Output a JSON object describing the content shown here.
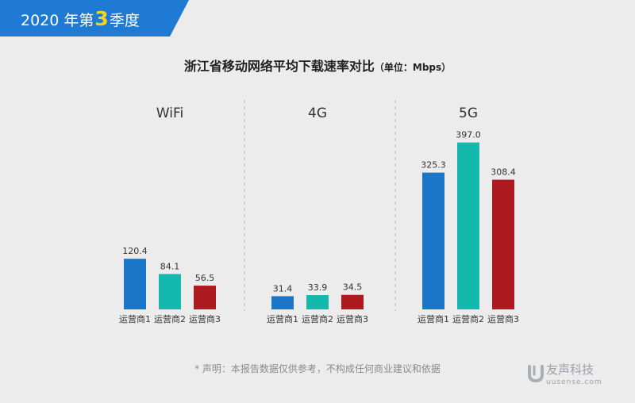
{
  "header": {
    "year_prefix": "2020 年第",
    "quarter_num": "3",
    "quarter_suffix": "季度"
  },
  "chart_data": {
    "type": "bar",
    "title": "浙江省移动网络平均下载速率对比",
    "unit_label": "（单位：Mbps）",
    "groups": [
      {
        "name": "WiFi",
        "categories": [
          "运营商1",
          "运营商2",
          "运营商3"
        ],
        "values": [
          120.4,
          84.1,
          56.5
        ]
      },
      {
        "name": "4G",
        "categories": [
          "运营商1",
          "运营商2",
          "运营商3"
        ],
        "values": [
          31.4,
          33.9,
          34.5
        ]
      },
      {
        "name": "5G",
        "categories": [
          "运营商1",
          "运营商2",
          "运营商3"
        ],
        "values": [
          325.3,
          397.0,
          308.4
        ]
      }
    ],
    "value_labels": [
      [
        "120.4",
        "84.1",
        "56.5"
      ],
      [
        "31.4",
        "33.9",
        "34.5"
      ],
      [
        "325.3",
        "397.0",
        "308.4"
      ]
    ],
    "colors": [
      "#1c76c8",
      "#13b9ad",
      "#ad1a1f"
    ],
    "ylim": [
      0,
      400
    ]
  },
  "footer": {
    "disclaimer": "* 声明：本报告数据仅供参考，不构成任何商业建议和依据"
  },
  "logo": {
    "name": "友声科技",
    "url": "uusense.com"
  }
}
